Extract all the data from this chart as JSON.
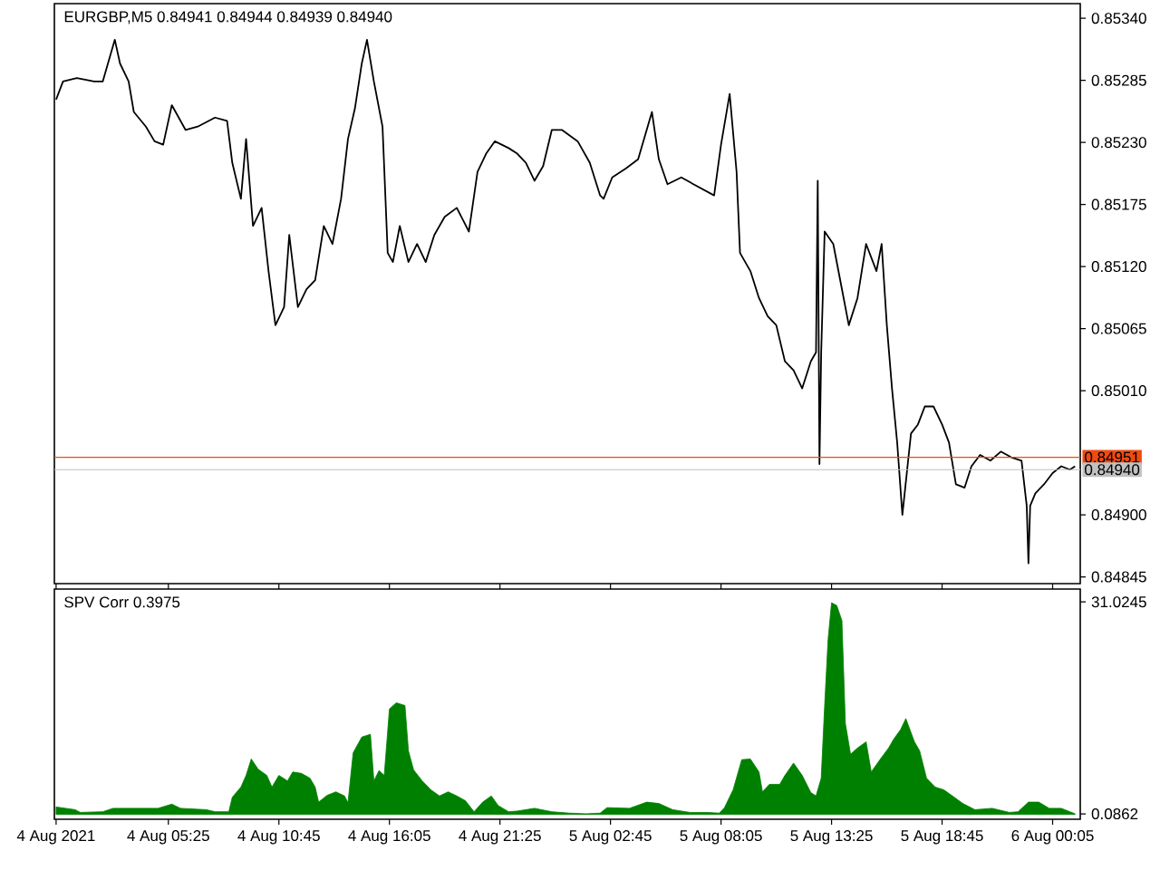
{
  "chart_data": [
    {
      "type": "line",
      "title": "EURGBP,M5  0.84941 0.84944 0.84939 0.84940",
      "color": "#000000",
      "x": [
        "2021-08-04T00:00",
        "2021-08-04T00:20",
        "2021-08-04T01:00",
        "2021-08-04T01:50",
        "2021-08-04T02:15",
        "2021-08-04T02:50",
        "2021-08-04T03:05",
        "2021-08-04T03:30",
        "2021-08-04T03:45",
        "2021-08-04T04:20",
        "2021-08-04T04:45",
        "2021-08-04T05:10",
        "2021-08-04T05:35",
        "2021-08-04T06:15",
        "2021-08-04T06:50",
        "2021-08-04T07:40",
        "2021-08-04T08:15",
        "2021-08-04T08:30",
        "2021-08-04T08:55",
        "2021-08-04T09:10",
        "2021-08-04T09:30",
        "2021-08-04T09:55",
        "2021-08-04T10:15",
        "2021-08-04T10:35",
        "2021-08-04T11:00",
        "2021-08-04T11:15",
        "2021-08-04T11:40",
        "2021-08-04T12:05",
        "2021-08-04T12:30",
        "2021-08-04T12:55",
        "2021-08-04T13:20",
        "2021-08-04T13:45",
        "2021-08-04T14:05",
        "2021-08-04T14:25",
        "2021-08-04T14:45",
        "2021-08-04T15:00",
        "2021-08-04T15:20",
        "2021-08-04T15:45",
        "2021-08-04T16:00",
        "2021-08-04T16:15",
        "2021-08-04T16:35",
        "2021-08-04T17:00",
        "2021-08-04T17:25",
        "2021-08-04T17:50",
        "2021-08-04T18:15",
        "2021-08-04T18:45",
        "2021-08-04T19:20",
        "2021-08-04T19:55",
        "2021-08-04T20:20",
        "2021-08-04T20:45",
        "2021-08-04T21:10",
        "2021-08-04T21:50",
        "2021-08-04T22:15",
        "2021-08-04T22:40",
        "2021-08-04T23:05",
        "2021-08-04T23:30",
        "2021-08-04T23:55",
        "2021-08-05T00:25",
        "2021-08-05T01:10",
        "2021-08-05T01:45",
        "2021-08-05T02:15",
        "2021-08-05T02:25",
        "2021-08-05T02:50",
        "2021-08-05T03:30",
        "2021-08-05T04:05",
        "2021-08-05T04:45",
        "2021-08-05T05:05",
        "2021-08-05T05:30",
        "2021-08-05T06:10",
        "2021-08-05T06:45",
        "2021-08-05T07:45",
        "2021-08-05T08:05",
        "2021-08-05T08:30",
        "2021-08-05T08:50",
        "2021-08-05T09:00",
        "2021-08-05T09:30",
        "2021-08-05T09:55",
        "2021-08-05T10:20",
        "2021-08-05T10:45",
        "2021-08-05T11:10",
        "2021-08-05T11:35",
        "2021-08-05T12:00",
        "2021-08-05T12:25",
        "2021-08-05T12:40",
        "2021-08-05T12:45",
        "2021-08-05T12:50",
        "2021-08-05T12:55",
        "2021-08-05T13:05",
        "2021-08-05T13:30",
        "2021-08-05T13:55",
        "2021-08-05T14:15",
        "2021-08-05T14:40",
        "2021-08-05T15:05",
        "2021-08-05T15:35",
        "2021-08-05T15:50",
        "2021-08-05T16:05",
        "2021-08-05T16:20",
        "2021-08-05T16:35",
        "2021-08-05T16:50",
        "2021-08-05T17:15",
        "2021-08-05T17:35",
        "2021-08-05T17:55",
        "2021-08-05T18:20",
        "2021-08-05T18:45",
        "2021-08-05T19:05",
        "2021-08-05T19:25",
        "2021-08-05T19:50",
        "2021-08-05T20:10",
        "2021-08-05T20:35",
        "2021-08-05T21:05",
        "2021-08-05T21:35",
        "2021-08-05T22:05",
        "2021-08-05T22:35",
        "2021-08-05T22:50",
        "2021-08-05T22:55",
        "2021-08-05T23:00",
        "2021-08-05T23:15",
        "2021-08-05T23:40",
        "2021-08-06T00:05",
        "2021-08-06T00:30",
        "2021-08-06T00:55",
        "2021-08-06T01:10"
      ],
      "values": [
        0.85268,
        0.85284,
        0.85287,
        0.85284,
        0.85284,
        0.85321,
        0.853,
        0.85284,
        0.85257,
        0.85244,
        0.85231,
        0.85228,
        0.85263,
        0.85241,
        0.85244,
        0.85252,
        0.85249,
        0.85212,
        0.8518,
        0.85233,
        0.85156,
        0.85172,
        0.85116,
        0.85068,
        0.85084,
        0.85148,
        0.85084,
        0.851,
        0.85108,
        0.85156,
        0.8514,
        0.8518,
        0.85233,
        0.8526,
        0.853,
        0.85321,
        0.85284,
        0.85244,
        0.85132,
        0.85124,
        0.85156,
        0.85124,
        0.8514,
        0.85124,
        0.85148,
        0.85164,
        0.85172,
        0.85151,
        0.85204,
        0.8522,
        0.85231,
        0.85225,
        0.8522,
        0.85212,
        0.85196,
        0.85209,
        0.85241,
        0.85241,
        0.85231,
        0.85212,
        0.85183,
        0.8518,
        0.85199,
        0.85207,
        0.85215,
        0.85257,
        0.85215,
        0.85193,
        0.85199,
        0.85193,
        0.85183,
        0.85228,
        0.85273,
        0.85204,
        0.85132,
        0.85116,
        0.85092,
        0.85076,
        0.85068,
        0.85036,
        0.85028,
        0.85012,
        0.85036,
        0.85044,
        0.85196,
        0.84945,
        0.85044,
        0.85151,
        0.8514,
        0.851,
        0.85068,
        0.85092,
        0.8514,
        0.85116,
        0.8514,
        0.85068,
        0.85012,
        0.84964,
        0.849,
        0.84972,
        0.8498,
        0.84996,
        0.84996,
        0.8498,
        0.84964,
        0.84927,
        0.84924,
        0.84943,
        0.84953,
        0.84948,
        0.84956,
        0.84951,
        0.84948,
        0.84908,
        0.84857,
        0.84908,
        0.84919,
        0.84927,
        0.84937,
        0.84943,
        0.8494,
        0.84943
      ],
      "xlim": [
        "2021-08-03T23:55",
        "2021-08-06T01:25"
      ],
      "ylim": [
        0.84839,
        0.85353
      ],
      "yticks": [
        {
          "value": 0.8534,
          "label": "0.85340"
        },
        {
          "value": 0.85285,
          "label": "0.85285"
        },
        {
          "value": 0.8523,
          "label": "0.85230"
        },
        {
          "value": 0.85175,
          "label": "0.85175"
        },
        {
          "value": 0.8512,
          "label": "0.85120"
        },
        {
          "value": 0.85065,
          "label": "0.85065"
        },
        {
          "value": 0.8501,
          "label": "0.85010"
        },
        {
          "value": 0.849,
          "label": "0.84900"
        },
        {
          "value": 0.84845,
          "label": "0.84845"
        }
      ],
      "tick_labels": "y",
      "xticks": [
        {
          "value": "2021-08-04T00:00",
          "label": null
        },
        {
          "value": "2021-08-04T05:25",
          "label": null
        },
        {
          "value": "2021-08-04T10:45",
          "label": null
        },
        {
          "value": "2021-08-04T16:05",
          "label": null
        },
        {
          "value": "2021-08-04T21:25",
          "label": null
        },
        {
          "value": "2021-08-05T02:45",
          "label": null
        },
        {
          "value": "2021-08-05T08:05",
          "label": null
        },
        {
          "value": "2021-08-05T13:25",
          "label": null
        },
        {
          "value": "2021-08-05T18:45",
          "label": null
        },
        {
          "value": "2021-08-06T00:05",
          "label": null
        }
      ],
      "ref_lines": [
        {
          "axis": "y",
          "value": 0.84951,
          "label": "0.84951",
          "color": "#f04a10"
        },
        {
          "axis": "y",
          "value": 0.8494,
          "label": "0.84940",
          "color": "#c0c0c0"
        }
      ]
    },
    {
      "type": "area",
      "title": "SPV Corr 0.3975",
      "color": "#008000",
      "x": [
        "2021-08-04T00:00",
        "2021-08-04T00:55",
        "2021-08-04T01:10",
        "2021-08-04T02:15",
        "2021-08-04T02:45",
        "2021-08-04T03:55",
        "2021-08-04T04:55",
        "2021-08-04T05:35",
        "2021-08-04T06:00",
        "2021-08-04T07:15",
        "2021-08-04T07:40",
        "2021-08-04T08:20",
        "2021-08-04T08:30",
        "2021-08-04T08:55",
        "2021-08-04T09:10",
        "2021-08-04T09:25",
        "2021-08-04T09:45",
        "2021-08-04T10:10",
        "2021-08-04T10:25",
        "2021-08-04T10:45",
        "2021-08-04T11:10",
        "2021-08-04T11:25",
        "2021-08-04T11:50",
        "2021-08-04T12:15",
        "2021-08-04T12:30",
        "2021-08-04T12:40",
        "2021-08-04T13:05",
        "2021-08-04T13:30",
        "2021-08-04T13:55",
        "2021-08-04T14:05",
        "2021-08-04T14:20",
        "2021-08-04T14:45",
        "2021-08-04T15:10",
        "2021-08-04T15:20",
        "2021-08-04T15:35",
        "2021-08-04T15:50",
        "2021-08-04T16:05",
        "2021-08-04T16:25",
        "2021-08-04T16:50",
        "2021-08-04T17:00",
        "2021-08-04T17:15",
        "2021-08-04T17:40",
        "2021-08-04T18:05",
        "2021-08-04T18:30",
        "2021-08-04T18:55",
        "2021-08-04T19:20",
        "2021-08-04T19:45",
        "2021-08-04T20:10",
        "2021-08-04T20:35",
        "2021-08-04T21:00",
        "2021-08-04T21:20",
        "2021-08-04T21:50",
        "2021-08-04T22:15",
        "2021-08-04T23:05",
        "2021-08-04T23:55",
        "2021-08-05T00:45",
        "2021-08-05T01:35",
        "2021-08-05T02:15",
        "2021-08-05T02:35",
        "2021-08-05T03:40",
        "2021-08-05T04:30",
        "2021-08-05T05:05",
        "2021-08-05T05:45",
        "2021-08-05T06:35",
        "2021-08-05T07:25",
        "2021-08-05T08:00",
        "2021-08-05T08:15",
        "2021-08-05T08:40",
        "2021-08-05T09:05",
        "2021-08-05T09:30",
        "2021-08-05T09:55",
        "2021-08-05T10:05",
        "2021-08-05T10:25",
        "2021-08-05T10:55",
        "2021-08-05T11:10",
        "2021-08-05T11:35",
        "2021-08-05T12:00",
        "2021-08-05T12:25",
        "2021-08-05T12:40",
        "2021-08-05T12:55",
        "2021-08-05T13:05",
        "2021-08-05T13:15",
        "2021-08-05T13:25",
        "2021-08-05T13:40",
        "2021-08-05T13:55",
        "2021-08-05T14:05",
        "2021-08-05T14:20",
        "2021-08-05T14:40",
        "2021-08-05T15:05",
        "2021-08-05T15:20",
        "2021-08-05T15:45",
        "2021-08-05T16:10",
        "2021-08-05T16:25",
        "2021-08-05T16:45",
        "2021-08-05T17:00",
        "2021-08-05T17:25",
        "2021-08-05T17:40",
        "2021-08-05T18:00",
        "2021-08-05T18:25",
        "2021-08-05T18:50",
        "2021-08-05T19:15",
        "2021-08-05T19:45",
        "2021-08-05T20:20",
        "2021-08-05T21:10",
        "2021-08-05T22:00",
        "2021-08-05T22:25",
        "2021-08-05T22:55",
        "2021-08-05T23:25",
        "2021-08-05T23:55",
        "2021-08-06T00:30",
        "2021-08-06T00:55",
        "2021-08-06T01:10"
      ],
      "values": [
        1.1,
        0.7,
        0.3,
        0.4,
        0.9,
        0.9,
        0.9,
        1.5,
        0.9,
        0.7,
        0.4,
        0.4,
        2.5,
        4.0,
        5.7,
        8.1,
        6.6,
        5.7,
        4.0,
        5.7,
        4.9,
        6.2,
        6.0,
        5.3,
        4.0,
        1.8,
        2.8,
        3.3,
        2.7,
        1.7,
        9.0,
        11.3,
        11.7,
        4.9,
        6.4,
        5.7,
        15.4,
        16.3,
        15.9,
        9.3,
        6.5,
        4.9,
        3.6,
        2.7,
        3.3,
        2.7,
        2.0,
        0.4,
        1.8,
        2.7,
        1.3,
        0.4,
        0.5,
        0.9,
        0.4,
        0.2,
        0.1,
        0.2,
        1.0,
        0.9,
        1.8,
        1.6,
        0.7,
        0.3,
        0.3,
        0.2,
        1.0,
        3.6,
        8.0,
        8.1,
        6.2,
        3.3,
        4.4,
        4.4,
        5.7,
        7.5,
        5.7,
        3.2,
        2.7,
        5.3,
        15.9,
        25.6,
        30.9,
        30.5,
        28.3,
        13.3,
        8.8,
        9.7,
        10.6,
        6.2,
        8.0,
        9.7,
        11.0,
        12.4,
        14.0,
        10.6,
        9.3,
        5.3,
        4.0,
        3.6,
        2.7,
        1.6,
        0.7,
        0.9,
        0.3,
        0.4,
        1.8,
        1.8,
        0.9,
        0.9,
        0.4,
        0.1
      ],
      "xlim": [
        "2021-08-03T23:55",
        "2021-08-06T01:25"
      ],
      "ylim": [
        -0.7,
        32.9
      ],
      "xticks": [
        {
          "value": "2021-08-04T00:00",
          "label": "4 Aug 2021"
        },
        {
          "value": "2021-08-04T05:25",
          "label": "4 Aug 05:25"
        },
        {
          "value": "2021-08-04T10:45",
          "label": "4 Aug 10:45"
        },
        {
          "value": "2021-08-04T16:05",
          "label": "4 Aug 16:05"
        },
        {
          "value": "2021-08-04T21:25",
          "label": "4 Aug 21:25"
        },
        {
          "value": "2021-08-05T02:45",
          "label": "5 Aug 02:45"
        },
        {
          "value": "2021-08-05T08:05",
          "label": "5 Aug 08:05"
        },
        {
          "value": "2021-08-05T13:25",
          "label": "5 Aug 13:25"
        },
        {
          "value": "2021-08-05T18:45",
          "label": "5 Aug 18:45"
        },
        {
          "value": "2021-08-06T00:05",
          "label": "6 Aug 00:05"
        }
      ],
      "yticks": [
        {
          "value": 31.0245,
          "label": "31.0245"
        },
        {
          "value": 0.0862,
          "label": "0.0862"
        }
      ]
    }
  ]
}
